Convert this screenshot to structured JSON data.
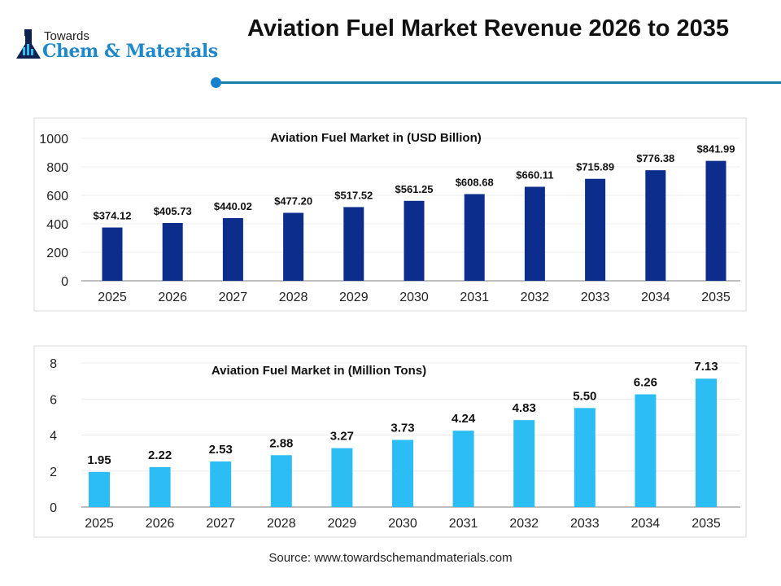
{
  "header": {
    "logo_small": "Towards",
    "logo_big": "Chem & Materials",
    "title": "Aviation Fuel Market Revenue 2026 to 2035"
  },
  "source": "Source: www.towardschemandmaterials.com",
  "colors": {
    "revenue_bar": "#0d2d8c",
    "volume_bar": "#2bbdf4",
    "accent": "#1a7fa8"
  },
  "chart_data": [
    {
      "type": "bar",
      "title": "Aviation Fuel Market in (USD Billion)",
      "categories": [
        "2025",
        "2026",
        "2027",
        "2028",
        "2029",
        "2030",
        "2031",
        "2032",
        "2033",
        "2034",
        "2035"
      ],
      "values": [
        374.12,
        405.73,
        440.02,
        477.2,
        517.52,
        561.25,
        608.68,
        660.11,
        715.89,
        776.38,
        841.99
      ],
      "labels": [
        "$374.12",
        "$405.73",
        "$440.02",
        "$477.20",
        "$517.52",
        "$561.25",
        "$608.68",
        "$660.11",
        "$715.89",
        "$776.38",
        "$841.99"
      ],
      "yticks": [
        "0",
        "200",
        "400",
        "600",
        "800",
        "1000"
      ],
      "ylim": [
        0,
        1000
      ],
      "grid": true
    },
    {
      "type": "bar",
      "title": "Aviation Fuel Market in (Million Tons)",
      "categories": [
        "2025",
        "2026",
        "2027",
        "2028",
        "2029",
        "2030",
        "2031",
        "2032",
        "2033",
        "2034",
        "2035"
      ],
      "values": [
        1.95,
        2.22,
        2.53,
        2.88,
        3.27,
        3.73,
        4.24,
        4.83,
        5.5,
        6.26,
        7.13
      ],
      "labels": [
        "1.95",
        "2.22",
        "2.53",
        "2.88",
        "3.27",
        "3.73",
        "4.24",
        "4.83",
        "5.50",
        "6.26",
        "7.13"
      ],
      "yticks": [
        "0",
        "2",
        "4",
        "6",
        "8"
      ],
      "ylim": [
        0,
        8
      ],
      "grid": true
    }
  ]
}
